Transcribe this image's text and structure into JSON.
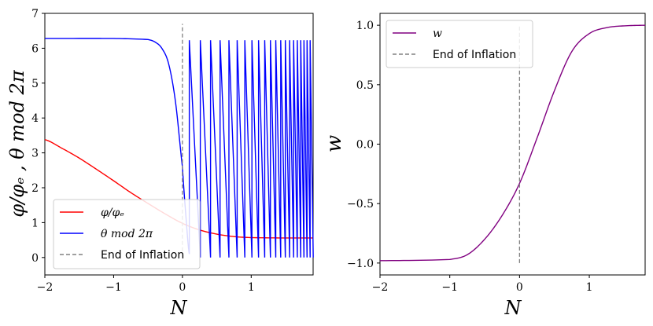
{
  "chart_data": [
    {
      "type": "line",
      "xlabel": "N",
      "ylabel": "φ/φₑ , θ mod 2π",
      "xlim": [
        -2,
        1.9
      ],
      "ylim": [
        -0.5,
        7
      ],
      "xticks": [
        -2,
        -1,
        0,
        1
      ],
      "yticks": [
        0,
        1,
        2,
        3,
        4,
        5,
        6,
        7
      ],
      "tick_labels_x": [
        "−2",
        "−1",
        "0",
        "1"
      ],
      "tick_labels_y": [
        "0",
        "1",
        "2",
        "3",
        "4",
        "5",
        "6",
        "7"
      ],
      "grid": false,
      "legend_position": "lower-left",
      "series": [
        {
          "name": "φ/φₑ",
          "color": "#ff0000",
          "x": [
            -2,
            -1.75,
            -1.5,
            -1.25,
            -1,
            -0.75,
            -0.5,
            -0.25,
            0,
            0.25,
            0.5,
            0.75,
            1,
            1.5,
            1.9
          ],
          "y": [
            3.38,
            3.13,
            2.85,
            2.53,
            2.2,
            1.86,
            1.55,
            1.25,
            0.98,
            0.79,
            0.67,
            0.6,
            0.57,
            0.56,
            0.56
          ]
        },
        {
          "name": "θ mod 2π",
          "color": "#0000ff",
          "x": [
            -2,
            -1,
            -0.5,
            -0.4,
            -0.3,
            -0.2,
            -0.1,
            0,
            0.05,
            0.1,
            0.5,
            1,
            1.9
          ],
          "y": [
            6.28,
            6.28,
            6.25,
            6.18,
            6.0,
            5.55,
            4.45,
            2.6,
            1.2,
            0.1,
            0.1,
            0,
            0
          ],
          "oscillation_start": 0.1,
          "oscillation_upper": 6.28,
          "oscillation_lower": 0.0
        },
        {
          "name": "End of Inflation",
          "color": "#808080",
          "style": "dashed",
          "x": [
            0,
            0
          ],
          "y": [
            0,
            6.7
          ]
        }
      ]
    },
    {
      "type": "line",
      "xlabel": "N",
      "ylabel": "w",
      "xlim": [
        -2,
        1.8
      ],
      "ylim": [
        -1.1,
        1.1
      ],
      "xticks": [
        -2,
        -1,
        0,
        1
      ],
      "yticks": [
        -1.0,
        -0.5,
        0.0,
        0.5,
        1.0
      ],
      "tick_labels_x": [
        "−2",
        "−1",
        "0",
        "1"
      ],
      "tick_labels_y": [
        "−1.0",
        "−0.5",
        "0.0",
        "0.5",
        "1.0"
      ],
      "grid": false,
      "legend_position": "top-left",
      "series": [
        {
          "name": "w",
          "color": "#800080",
          "x": [
            -2,
            -1,
            -0.75,
            -0.5,
            -0.25,
            0,
            0.25,
            0.5,
            0.75,
            1,
            1.25,
            1.5,
            1.8
          ],
          "y": [
            -0.98,
            -0.97,
            -0.93,
            -0.8,
            -0.6,
            -0.33,
            0.05,
            0.45,
            0.78,
            0.93,
            0.98,
            0.995,
            1.0
          ]
        },
        {
          "name": "End of Inflation",
          "color": "#808080",
          "style": "dashed",
          "x": [
            0,
            0
          ],
          "y": [
            -1.0,
            1.0
          ]
        }
      ]
    }
  ]
}
